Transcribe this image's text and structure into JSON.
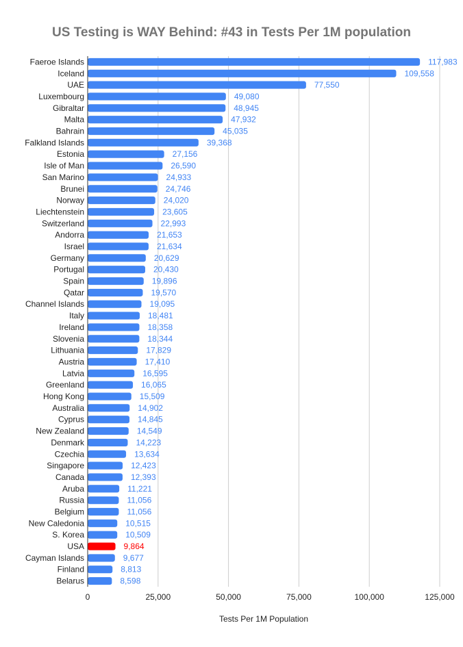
{
  "chart_data": {
    "type": "bar",
    "orientation": "horizontal",
    "title": "US Testing is WAY Behind:  #43 in Tests Per 1M population",
    "xlabel": "Tests Per 1M Population",
    "ylabel": "",
    "xlim": [
      0,
      125000
    ],
    "x_ticks": [
      0,
      25000,
      50000,
      75000,
      100000,
      125000
    ],
    "x_tick_labels": [
      "0",
      "25,000",
      "50,000",
      "75,000",
      "100,000",
      "125,000"
    ],
    "grid": "vertical",
    "legend": "none",
    "colors": {
      "default": "#4285f4",
      "highlight": "#ff0000",
      "label_default": "#4285f4",
      "label_highlight": "#ff0000"
    },
    "highlight": "USA",
    "categories": [
      "Faeroe Islands",
      "Iceland",
      "UAE",
      "Luxembourg",
      "Gibraltar",
      "Malta",
      "Bahrain",
      "Falkland Islands",
      "Estonia",
      "Isle of Man",
      "San Marino",
      "Brunei",
      "Norway",
      "Liechtenstein",
      "Switzerland",
      "Andorra",
      "Israel",
      "Germany",
      "Portugal",
      "Spain",
      "Qatar",
      "Channel Islands",
      "Italy",
      "Ireland",
      "Slovenia",
      "Lithuania",
      "Austria",
      "Latvia",
      "Greenland",
      "Hong Kong",
      "Australia",
      "Cyprus",
      "New Zealand",
      "Denmark",
      "Czechia",
      "Singapore",
      "Canada",
      "Aruba",
      "Russia",
      "Belgium",
      "New Caledonia",
      "S. Korea",
      "USA",
      "Cayman Islands",
      "Finland",
      "Belarus"
    ],
    "values": [
      117983,
      109558,
      77550,
      49080,
      48945,
      47932,
      45035,
      39368,
      27156,
      26590,
      24933,
      24746,
      24020,
      23605,
      22993,
      21653,
      21634,
      20629,
      20430,
      19896,
      19570,
      19095,
      18481,
      18358,
      18344,
      17829,
      17410,
      16595,
      16065,
      15509,
      14902,
      14845,
      14549,
      14223,
      13634,
      12423,
      12393,
      11221,
      11056,
      11056,
      10515,
      10509,
      9864,
      9677,
      8813,
      8598
    ],
    "value_labels": [
      "117,983",
      "109,558",
      "77,550",
      "49,080",
      "48,945",
      "47,932",
      "45,035",
      "39,368",
      "27,156",
      "26,590",
      "24,933",
      "24,746",
      "24,020",
      "23,605",
      "22,993",
      "21,653",
      "21,634",
      "20,629",
      "20,430",
      "19,896",
      "19,570",
      "19,095",
      "18,481",
      "18,358",
      "18,344",
      "17,829",
      "17,410",
      "16,595",
      "16,065",
      "15,509",
      "14,902",
      "14,845",
      "14,549",
      "14,223",
      "13,634",
      "12,423",
      "12,393",
      "11,221",
      "11,056",
      "11,056",
      "10,515",
      "10,509",
      "9,864",
      "9,677",
      "8,813",
      "8,598"
    ]
  }
}
